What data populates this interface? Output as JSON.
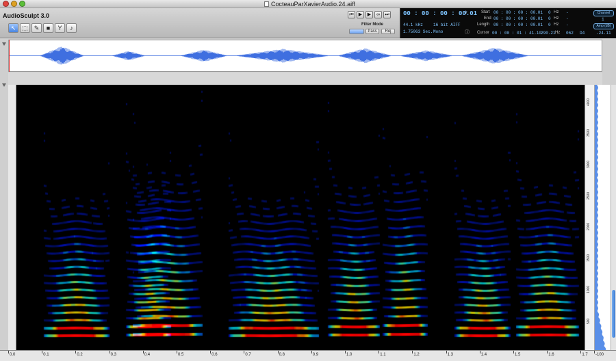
{
  "window": {
    "title": "CocteauParXavierAudio.24.aiff"
  },
  "app": {
    "name": "AudioSculpt 3.0"
  },
  "tools": [
    "pointer-tool",
    "selection-tool",
    "pencil-tool",
    "color-tool",
    "filter-tool",
    "scrub-tool"
  ],
  "filter": {
    "label": "Filter Mode",
    "buttons": [
      "Pass",
      "Rej"
    ]
  },
  "lcd": {
    "time": "00 : 00 : 00 : 00.01",
    "sample_rate": "44.1 kHz",
    "bit_depth": "16 bit AIFF",
    "duration": "1.75063 Sec.",
    "channels": "Mono",
    "start_label": "Start",
    "start": "00 : 00 : 00 : 00.01",
    "end_label": "End",
    "end": "00 : 00 : 00 : 00.01",
    "length_label": "Length",
    "length": "00 : 00 : 00 : 00.01",
    "cursor_label": "Cursor",
    "cursor": "00 : 00 : 01 : 41.10",
    "start_hz": "0",
    "end_hz": "0",
    "length_hz": "0",
    "hz_unit": "Hz",
    "cursor_hz": "290.21",
    "midi": "062",
    "note": "D4",
    "amp": "-24.11",
    "channel_btn": "Channel",
    "channel_num": "1",
    "amp_btn": "Amp (dB)"
  },
  "freq_ticks": [
    "500",
    "1000",
    "1500",
    "2000",
    "2500",
    "3000",
    "3500",
    "4000"
  ],
  "time_ticks": [
    "0.0",
    "0.1",
    "0.2",
    "0.3",
    "0.4",
    "0.5",
    "0.6",
    "0.7",
    "0.8",
    "0.9",
    "1.0",
    "1.1",
    "1.2",
    "1.3",
    "1.4",
    "1.5",
    "1.6",
    "1.7"
  ],
  "amp_scale_end": "-100",
  "colors": {
    "lcd_text": "#7fc4ff",
    "waveform": "#3f6fe0",
    "spectrogram_bg": "#000000"
  }
}
